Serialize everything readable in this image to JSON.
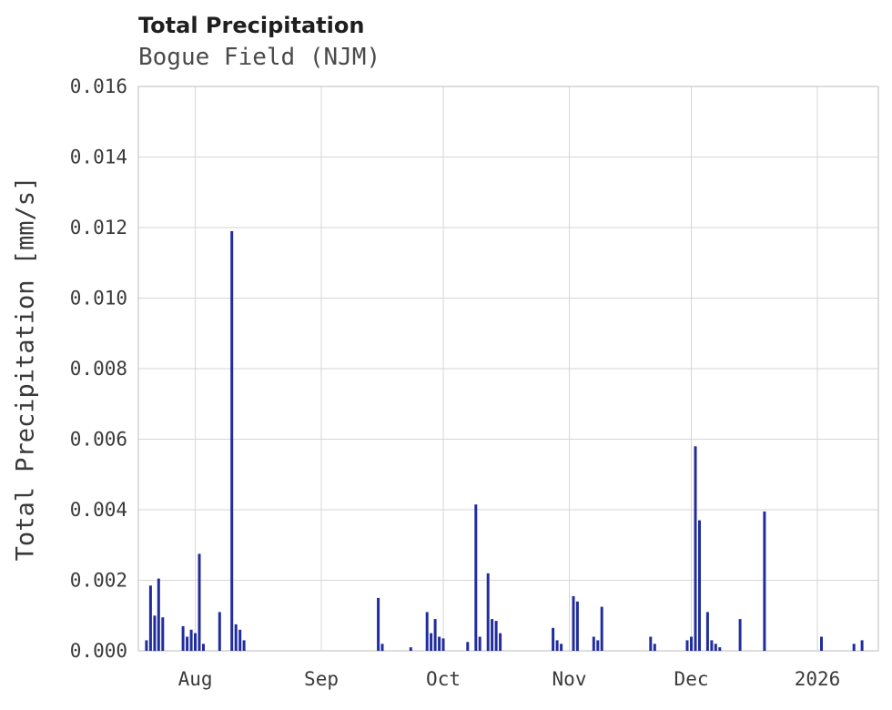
{
  "page": {
    "background": "#ffffff"
  },
  "chart_data": {
    "type": "bar",
    "title": "Total Precipitation",
    "subtitle": "Bogue Field (NJM)",
    "xlabel": "",
    "ylabel": "Total Precipitation [mm/s]",
    "ylim": [
      0,
      0.016
    ],
    "grid": true,
    "legend": false,
    "bar_color": "#212d9c",
    "grid_color": "#d6d6d6",
    "border_color": "#c9c9c9",
    "text_color": "#3a3a3a",
    "x_range": {
      "start": "2025-07-18",
      "end": "2026-01-16"
    },
    "yticks": [
      {
        "value": 0,
        "label": "0.000"
      },
      {
        "value": 0.002,
        "label": "0.002"
      },
      {
        "value": 0.004,
        "label": "0.004"
      },
      {
        "value": 0.006,
        "label": "0.006"
      },
      {
        "value": 0.008,
        "label": "0.008"
      },
      {
        "value": 0.01,
        "label": "0.010"
      },
      {
        "value": 0.012,
        "label": "0.012"
      },
      {
        "value": 0.014,
        "label": "0.014"
      },
      {
        "value": 0.016,
        "label": "0.016"
      }
    ],
    "xticks": [
      {
        "date": "2025-08-01",
        "label": "Aug"
      },
      {
        "date": "2025-09-01",
        "label": "Sep"
      },
      {
        "date": "2025-10-01",
        "label": "Oct"
      },
      {
        "date": "2025-11-01",
        "label": "Nov"
      },
      {
        "date": "2025-12-01",
        "label": "Dec"
      },
      {
        "date": "2026-01-01",
        "label": "2026"
      }
    ],
    "series": [
      {
        "name": "Total Precipitation",
        "unit": "mm/s",
        "points": [
          {
            "date": "2025-07-20",
            "value": 0.0003
          },
          {
            "date": "2025-07-21",
            "value": 0.00185
          },
          {
            "date": "2025-07-22",
            "value": 0.001
          },
          {
            "date": "2025-07-23",
            "value": 0.00205
          },
          {
            "date": "2025-07-24",
            "value": 0.00095
          },
          {
            "date": "2025-07-29",
            "value": 0.0007
          },
          {
            "date": "2025-07-30",
            "value": 0.0004
          },
          {
            "date": "2025-07-31",
            "value": 0.0006
          },
          {
            "date": "2025-08-01",
            "value": 0.0005
          },
          {
            "date": "2025-08-02",
            "value": 0.00275
          },
          {
            "date": "2025-08-03",
            "value": 0.0002
          },
          {
            "date": "2025-08-07",
            "value": 0.0011
          },
          {
            "date": "2025-08-10",
            "value": 0.0119
          },
          {
            "date": "2025-08-11",
            "value": 0.00075
          },
          {
            "date": "2025-08-12",
            "value": 0.0006
          },
          {
            "date": "2025-08-13",
            "value": 0.0003
          },
          {
            "date": "2025-09-15",
            "value": 0.0015
          },
          {
            "date": "2025-09-16",
            "value": 0.0002
          },
          {
            "date": "2025-09-23",
            "value": 0.0001
          },
          {
            "date": "2025-09-27",
            "value": 0.0011
          },
          {
            "date": "2025-09-28",
            "value": 0.0005
          },
          {
            "date": "2025-09-29",
            "value": 0.0009
          },
          {
            "date": "2025-09-30",
            "value": 0.0004
          },
          {
            "date": "2025-10-01",
            "value": 0.00035
          },
          {
            "date": "2025-10-07",
            "value": 0.00025
          },
          {
            "date": "2025-10-09",
            "value": 0.00415
          },
          {
            "date": "2025-10-10",
            "value": 0.0004
          },
          {
            "date": "2025-10-12",
            "value": 0.0022
          },
          {
            "date": "2025-10-13",
            "value": 0.0009
          },
          {
            "date": "2025-10-14",
            "value": 0.00085
          },
          {
            "date": "2025-10-15",
            "value": 0.0005
          },
          {
            "date": "2025-10-28",
            "value": 0.00065
          },
          {
            "date": "2025-10-29",
            "value": 0.0003
          },
          {
            "date": "2025-10-30",
            "value": 0.0002
          },
          {
            "date": "2025-11-02",
            "value": 0.00155
          },
          {
            "date": "2025-11-03",
            "value": 0.0014
          },
          {
            "date": "2025-11-07",
            "value": 0.0004
          },
          {
            "date": "2025-11-08",
            "value": 0.0003
          },
          {
            "date": "2025-11-09",
            "value": 0.00125
          },
          {
            "date": "2025-11-21",
            "value": 0.0004
          },
          {
            "date": "2025-11-22",
            "value": 0.0002
          },
          {
            "date": "2025-11-30",
            "value": 0.0003
          },
          {
            "date": "2025-12-01",
            "value": 0.0004
          },
          {
            "date": "2025-12-02",
            "value": 0.0058
          },
          {
            "date": "2025-12-03",
            "value": 0.0037
          },
          {
            "date": "2025-12-05",
            "value": 0.0011
          },
          {
            "date": "2025-12-06",
            "value": 0.0003
          },
          {
            "date": "2025-12-07",
            "value": 0.0002
          },
          {
            "date": "2025-12-08",
            "value": 0.0001
          },
          {
            "date": "2025-12-13",
            "value": 0.0009
          },
          {
            "date": "2025-12-19",
            "value": 0.00395
          },
          {
            "date": "2026-01-02",
            "value": 0.0004
          },
          {
            "date": "2026-01-10",
            "value": 0.0002
          },
          {
            "date": "2026-01-12",
            "value": 0.0003
          }
        ]
      }
    ]
  }
}
